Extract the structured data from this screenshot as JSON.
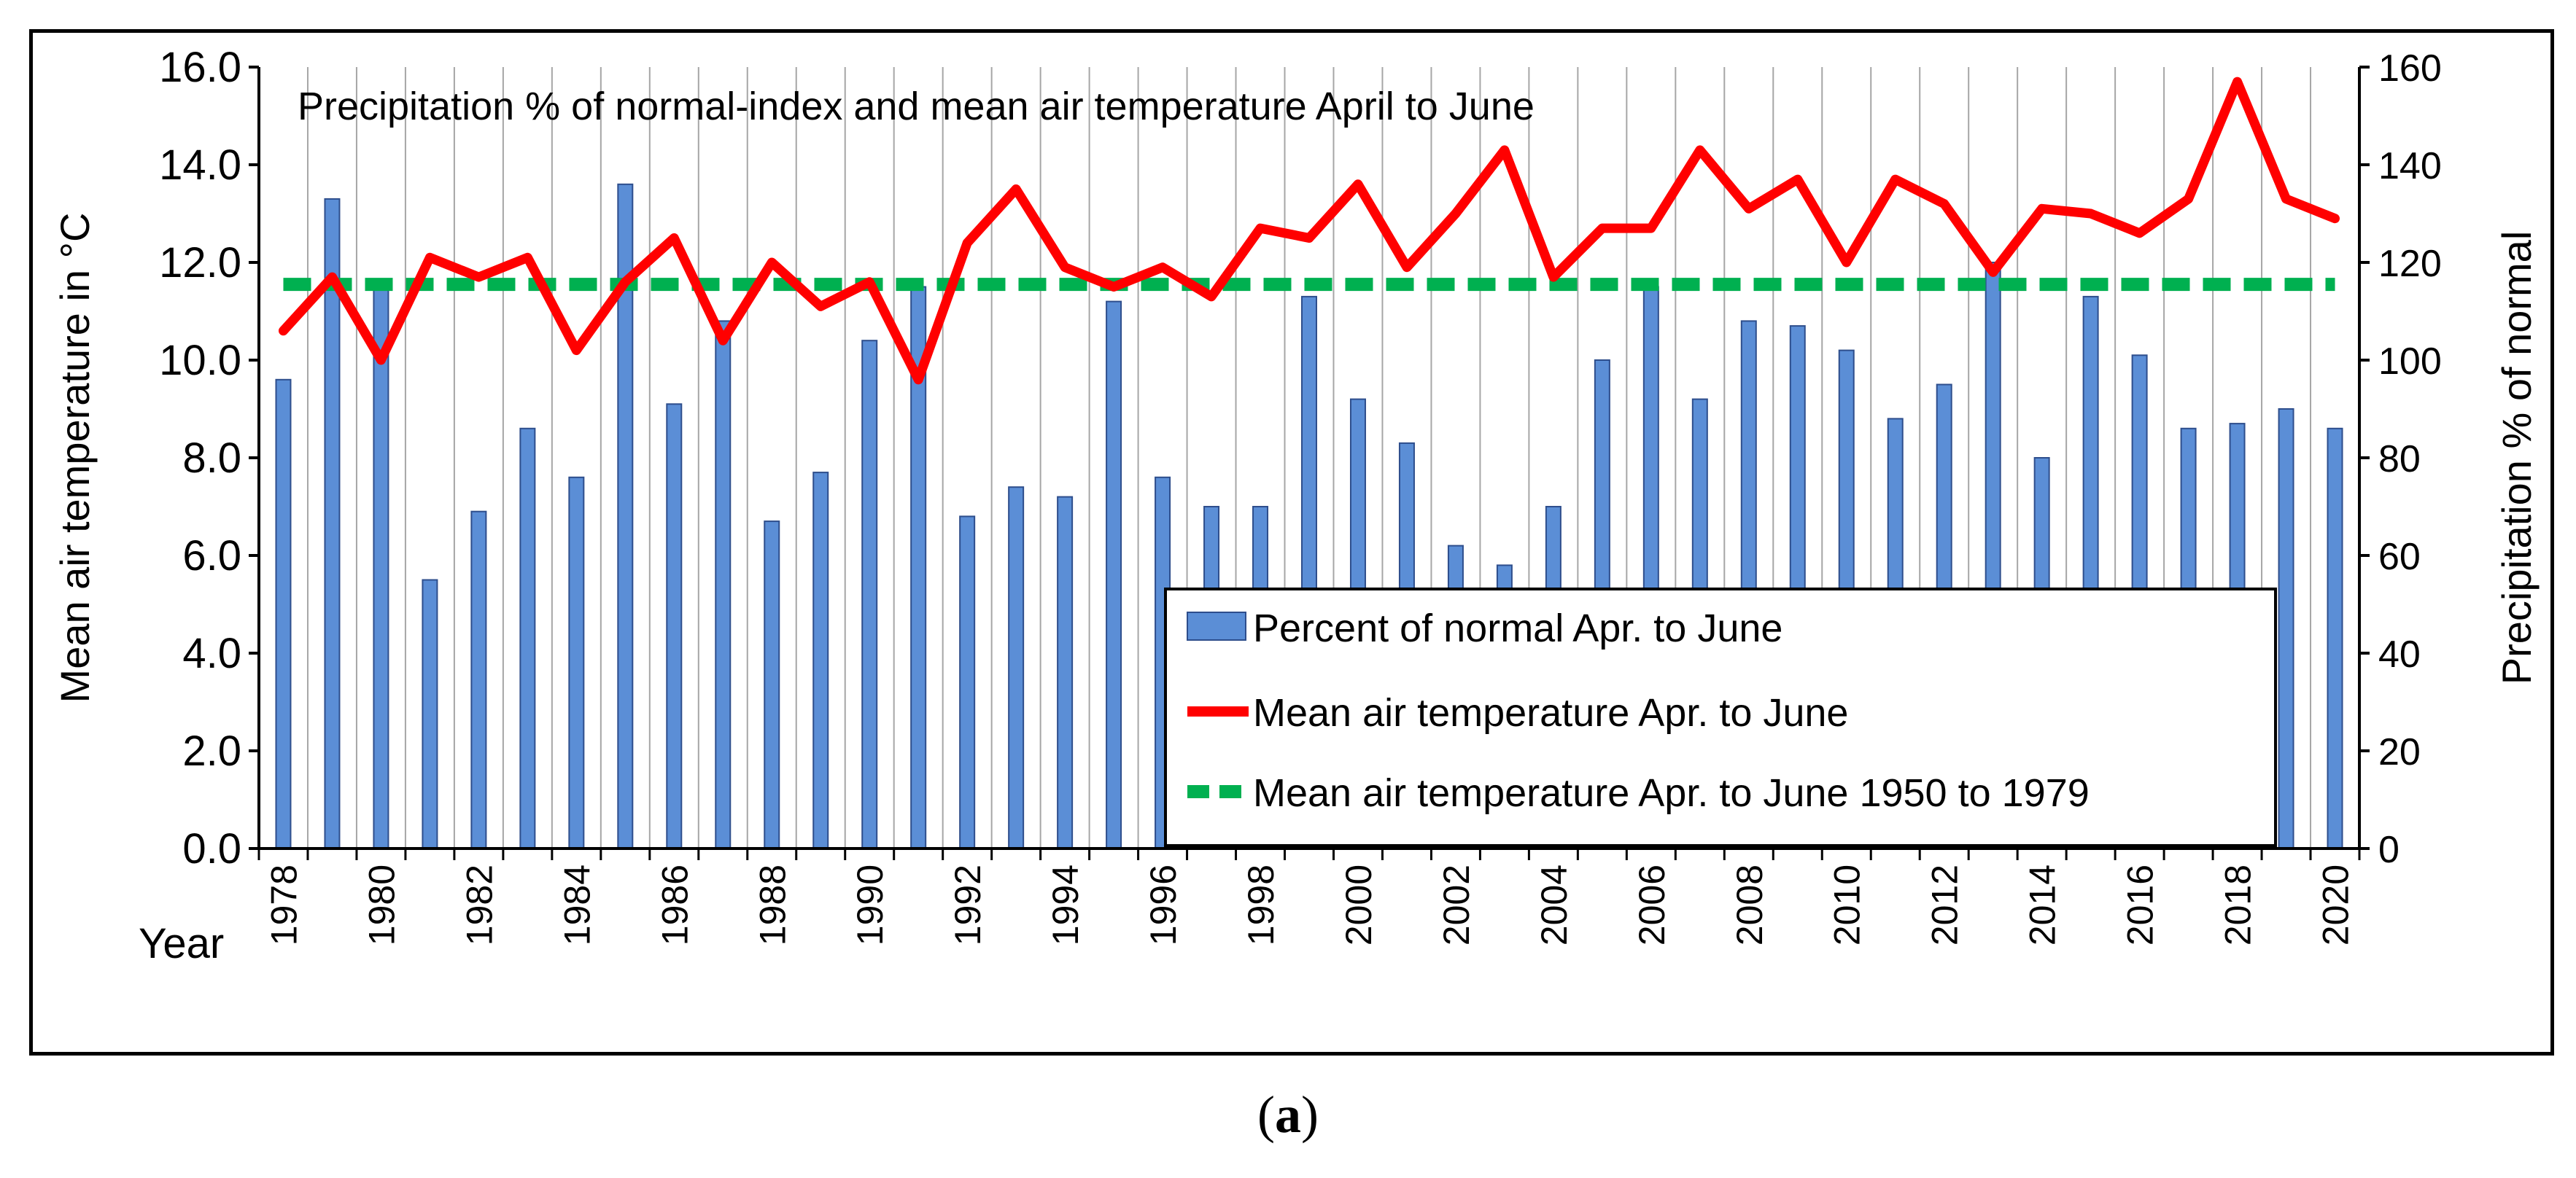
{
  "caption": {
    "open": "(",
    "letter": "a",
    "close": ")"
  },
  "chart_data": {
    "type": "bar+line",
    "title": "Precipitation % of normal-index and mean air temperature April to June",
    "xlabel": "Year",
    "ylabel_left": "Mean air temperature in °C",
    "ylabel_right": "Precipitation % of normal",
    "ylim_left": [
      0,
      16
    ],
    "ylim_right": [
      0,
      160
    ],
    "yticks_left": [
      "0.0",
      "2.0",
      "4.0",
      "6.0",
      "8.0",
      "10.0",
      "12.0",
      "14.0",
      "16.0"
    ],
    "yticks_right": [
      "0",
      "20",
      "40",
      "60",
      "80",
      "100",
      "120",
      "140",
      "160"
    ],
    "xtick_labels": [
      "1978",
      "1980",
      "1982",
      "1984",
      "1986",
      "1988",
      "1990",
      "1992",
      "1994",
      "1996",
      "1998",
      "2000",
      "2002",
      "2004",
      "2006",
      "2008",
      "2010",
      "2012",
      "2014",
      "2016",
      "2018",
      "2020"
    ],
    "years": [
      1978,
      1979,
      1980,
      1981,
      1982,
      1983,
      1984,
      1985,
      1986,
      1987,
      1988,
      1989,
      1990,
      1991,
      1992,
      1993,
      1994,
      1995,
      1996,
      1997,
      1998,
      1999,
      2000,
      2001,
      2002,
      2003,
      2004,
      2005,
      2006,
      2007,
      2008,
      2009,
      2010,
      2011,
      2012,
      2013,
      2014,
      2015,
      2016,
      2017,
      2018,
      2019,
      2020
    ],
    "series": [
      {
        "name": "Percent of normal Apr. to June",
        "type": "bar",
        "axis": "right",
        "color": "#5B8ED6",
        "values": [
          96,
          133,
          116,
          55,
          69,
          86,
          76,
          136,
          91,
          108,
          67,
          77,
          104,
          115,
          68,
          74,
          72,
          112,
          76,
          70,
          70,
          113,
          92,
          83,
          62,
          58,
          70,
          100,
          115,
          92,
          108,
          107,
          102,
          88,
          95,
          120,
          80,
          113,
          101,
          86,
          87,
          90,
          86
        ]
      },
      {
        "name": "Mean air temperature Apr. to June",
        "type": "line",
        "axis": "left",
        "color": "#FF0000",
        "values": [
          10.6,
          11.7,
          10.0,
          12.1,
          11.7,
          12.1,
          10.2,
          11.6,
          12.5,
          10.4,
          12.0,
          11.1,
          11.6,
          9.6,
          12.4,
          13.5,
          11.9,
          11.5,
          11.9,
          11.3,
          12.7,
          12.5,
          13.6,
          11.9,
          13.0,
          14.3,
          11.7,
          12.7,
          12.7,
          14.3,
          13.1,
          13.7,
          12.0,
          13.7,
          13.2,
          11.8,
          13.1,
          13.0,
          12.6,
          13.3,
          15.7,
          13.3,
          12.9
        ]
      },
      {
        "name": "Mean air temperature Apr. to June 1950 to 1979",
        "type": "reference",
        "axis": "left",
        "color": "#00B050",
        "value": 11.55
      }
    ],
    "legend_position": "bottom-right"
  }
}
